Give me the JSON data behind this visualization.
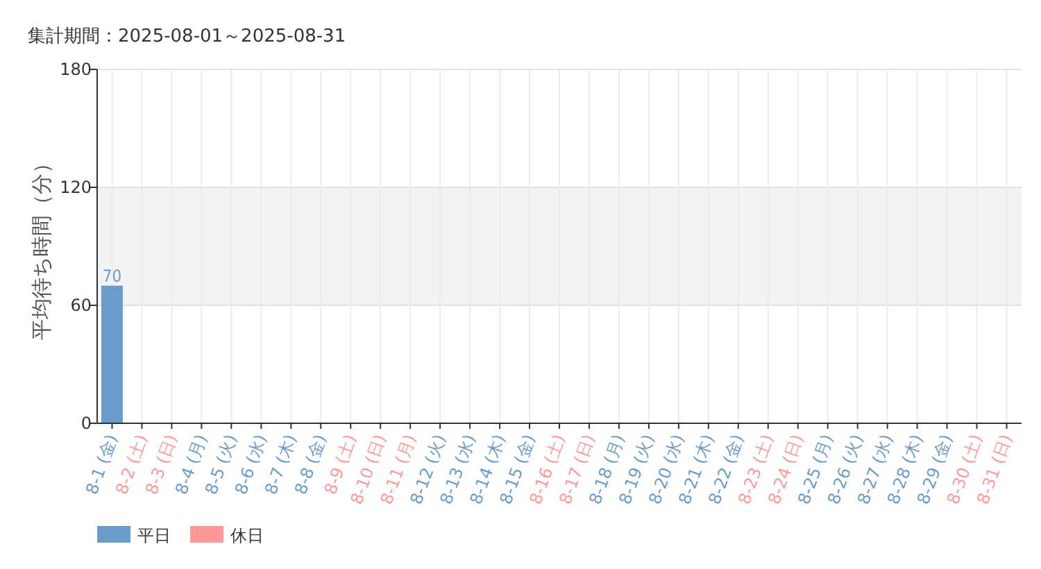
{
  "chart_data": {
    "type": "bar",
    "title": "集計期間：2025-08-01～2025-08-31",
    "ylabel": "平均待ち時間（分）",
    "categories": [
      "8-1 (金)",
      "8-2 (土)",
      "8-3 (日)",
      "8-4 (月)",
      "8-5 (火)",
      "8-6 (水)",
      "8-7 (木)",
      "8-8 (金)",
      "8-9 (土)",
      "8-10 (日)",
      "8-11 (月)",
      "8-12 (火)",
      "8-13 (水)",
      "8-14 (木)",
      "8-15 (金)",
      "8-16 (土)",
      "8-17 (日)",
      "8-18 (月)",
      "8-19 (火)",
      "8-20 (水)",
      "8-21 (木)",
      "8-22 (金)",
      "8-23 (土)",
      "8-24 (日)",
      "8-25 (月)",
      "8-26 (火)",
      "8-27 (水)",
      "8-28 (木)",
      "8-29 (金)",
      "8-30 (土)",
      "8-31 (日)"
    ],
    "colors": [
      "#6b9bc9",
      "#ff9999",
      "#ff9999",
      "#6b9bc9",
      "#6b9bc9",
      "#6b9bc9",
      "#6b9bc9",
      "#6b9bc9",
      "#ff9999",
      "#ff9999",
      "#ff9999",
      "#6b9bc9",
      "#6b9bc9",
      "#6b9bc9",
      "#6b9bc9",
      "#ff9999",
      "#ff9999",
      "#6b9bc9",
      "#6b9bc9",
      "#6b9bc9",
      "#6b9bc9",
      "#6b9bc9",
      "#ff9999",
      "#ff9999",
      "#6b9bc9",
      "#6b9bc9",
      "#6b9bc9",
      "#6b9bc9",
      "#6b9bc9",
      "#ff9999",
      "#ff9999"
    ],
    "series": [
      {
        "name": "平日",
        "color": "#6b9bc9",
        "values": [
          70,
          null,
          null,
          null,
          null,
          null,
          null,
          null,
          null,
          null,
          null,
          null,
          null,
          null,
          null,
          null,
          null,
          null,
          null,
          null,
          null,
          null,
          null,
          null,
          null,
          null,
          null,
          null,
          null,
          null,
          null
        ]
      },
      {
        "name": "休日",
        "color": "#ff9999",
        "values": [
          null,
          null,
          null,
          null,
          null,
          null,
          null,
          null,
          null,
          null,
          null,
          null,
          null,
          null,
          null,
          null,
          null,
          null,
          null,
          null,
          null,
          null,
          null,
          null,
          null,
          null,
          null,
          null,
          null,
          null,
          null
        ]
      }
    ],
    "ylim": [
      0,
      180
    ],
    "yticks": [
      0,
      60,
      120,
      180
    ],
    "bands": [
      {
        "axis": "y",
        "from": 60,
        "to": 120,
        "color": "#f3f3f3"
      }
    ],
    "grid": true,
    "data_labels": true,
    "legend": "bottom left"
  }
}
